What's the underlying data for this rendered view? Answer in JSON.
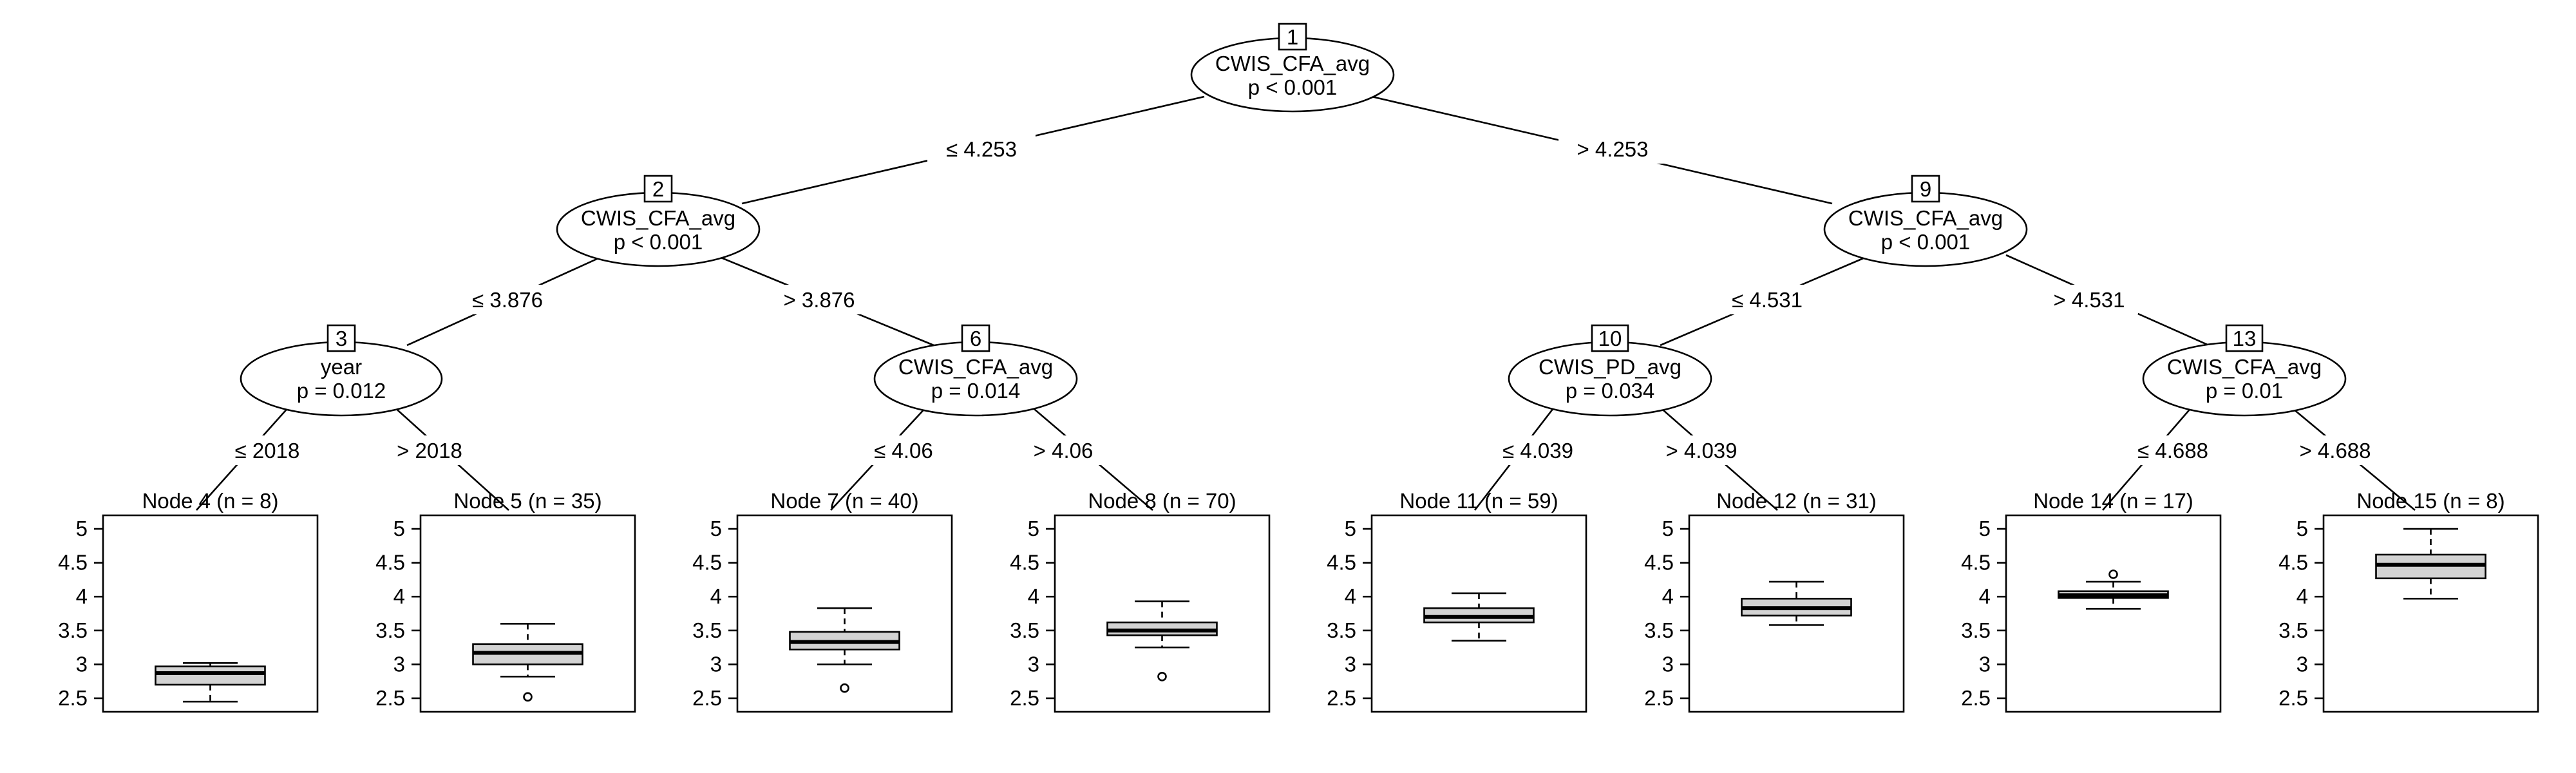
{
  "inner_nodes": [
    {
      "id": "1",
      "variable": "CWIS_CFA_avg",
      "pvalue": "p < 0.001"
    },
    {
      "id": "2",
      "variable": "CWIS_CFA_avg",
      "pvalue": "p < 0.001"
    },
    {
      "id": "3",
      "variable": "year",
      "pvalue": "p = 0.012"
    },
    {
      "id": "6",
      "variable": "CWIS_CFA_avg",
      "pvalue": "p = 0.014"
    },
    {
      "id": "9",
      "variable": "CWIS_CFA_avg",
      "pvalue": "p < 0.001"
    },
    {
      "id": "10",
      "variable": "CWIS_PD_avg",
      "pvalue": "p = 0.034"
    },
    {
      "id": "13",
      "variable": "CWIS_CFA_avg",
      "pvalue": "p = 0.01"
    }
  ],
  "edge_labels": [
    "≤ 4.253",
    "> 4.253",
    "≤ 3.876",
    "> 3.876",
    "≤ 4.531",
    "> 4.531",
    "≤ 2018",
    "> 2018",
    "≤ 4.06",
    "> 4.06",
    "≤ 4.039",
    "> 4.039",
    "≤ 4.688",
    "> 4.688"
  ],
  "terminal_nodes": [
    "Node 4 (n = 8)",
    "Node 5 (n = 35)",
    "Node 7 (n = 40)",
    "Node 8 (n = 70)",
    "Node 11 (n = 59)",
    "Node 12 (n = 31)",
    "Node 14 (n = 17)",
    "Node 15 (n = 8)"
  ],
  "y_ticks": [
    "5",
    "4.5",
    "4",
    "3.5",
    "3",
    "2.5"
  ],
  "chart_data": {
    "type": "boxplot",
    "ylim": [
      2.3,
      5.2
    ],
    "y_tick_values": [
      2.5,
      3,
      3.5,
      4,
      4.5,
      5
    ],
    "boxes": [
      {
        "lower_whisker": 2.45,
        "q1": 2.7,
        "median": 2.87,
        "q3": 2.97,
        "upper_whisker": 3.02,
        "outliers": []
      },
      {
        "lower_whisker": 2.82,
        "q1": 3.0,
        "median": 3.17,
        "q3": 3.3,
        "upper_whisker": 3.6,
        "outliers": [
          2.52
        ]
      },
      {
        "lower_whisker": 3.0,
        "q1": 3.22,
        "median": 3.33,
        "q3": 3.48,
        "upper_whisker": 3.83,
        "outliers": [
          2.65
        ]
      },
      {
        "lower_whisker": 3.25,
        "q1": 3.43,
        "median": 3.5,
        "q3": 3.62,
        "upper_whisker": 3.93,
        "outliers": [
          2.82
        ]
      },
      {
        "lower_whisker": 3.35,
        "q1": 3.62,
        "median": 3.7,
        "q3": 3.83,
        "upper_whisker": 4.05,
        "outliers": []
      },
      {
        "lower_whisker": 3.58,
        "q1": 3.72,
        "median": 3.83,
        "q3": 3.97,
        "upper_whisker": 4.22,
        "outliers": []
      },
      {
        "lower_whisker": 3.82,
        "q1": 3.98,
        "median": 4.02,
        "q3": 4.08,
        "upper_whisker": 4.22,
        "outliers": [
          4.33
        ]
      },
      {
        "lower_whisker": 3.97,
        "q1": 4.27,
        "median": 4.47,
        "q3": 4.62,
        "upper_whisker": 5.0,
        "outliers": []
      }
    ]
  }
}
